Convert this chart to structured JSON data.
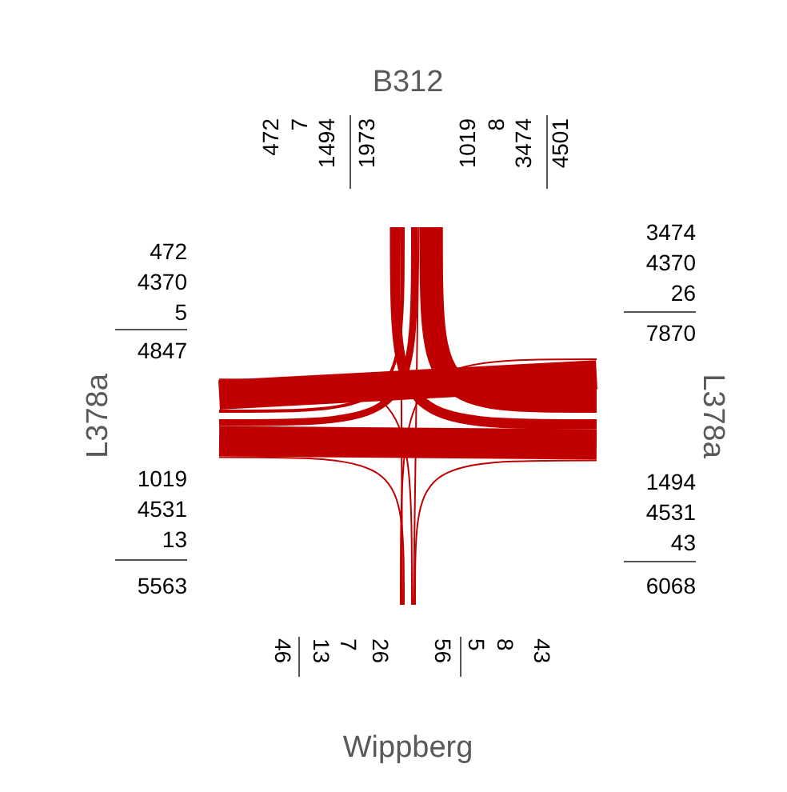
{
  "chart_data": {
    "type": "other",
    "categories": [
      "B312",
      "L378a",
      "Wippberg",
      "L378a"
    ],
    "series": [
      {
        "color": "#c00000",
        "values": [
          null,
          1494,
          7,
          472
        ],
        "value_labels": [
          null,
          "1494",
          "7",
          "472"
        ]
      },
      {
        "color": "#c00000",
        "values": [
          3474,
          null,
          26,
          4370
        ],
        "value_labels": [
          "3474",
          null,
          "26",
          "4370"
        ]
      },
      {
        "color": "#c00000",
        "values": [
          8,
          43,
          null,
          5
        ],
        "value_labels": [
          "8",
          "43",
          null,
          "5"
        ]
      },
      {
        "color": "#c00000",
        "values": [
          1019,
          4531,
          13,
          null
        ],
        "value_labels": [
          "1019",
          "4531",
          "13",
          null
        ]
      }
    ],
    "totals": [
      [
        "1973",
        "4501"
      ],
      [
        "7870",
        "6068"
      ],
      [
        "56",
        "46"
      ],
      [
        "5563",
        "4847"
      ]
    ]
  }
}
